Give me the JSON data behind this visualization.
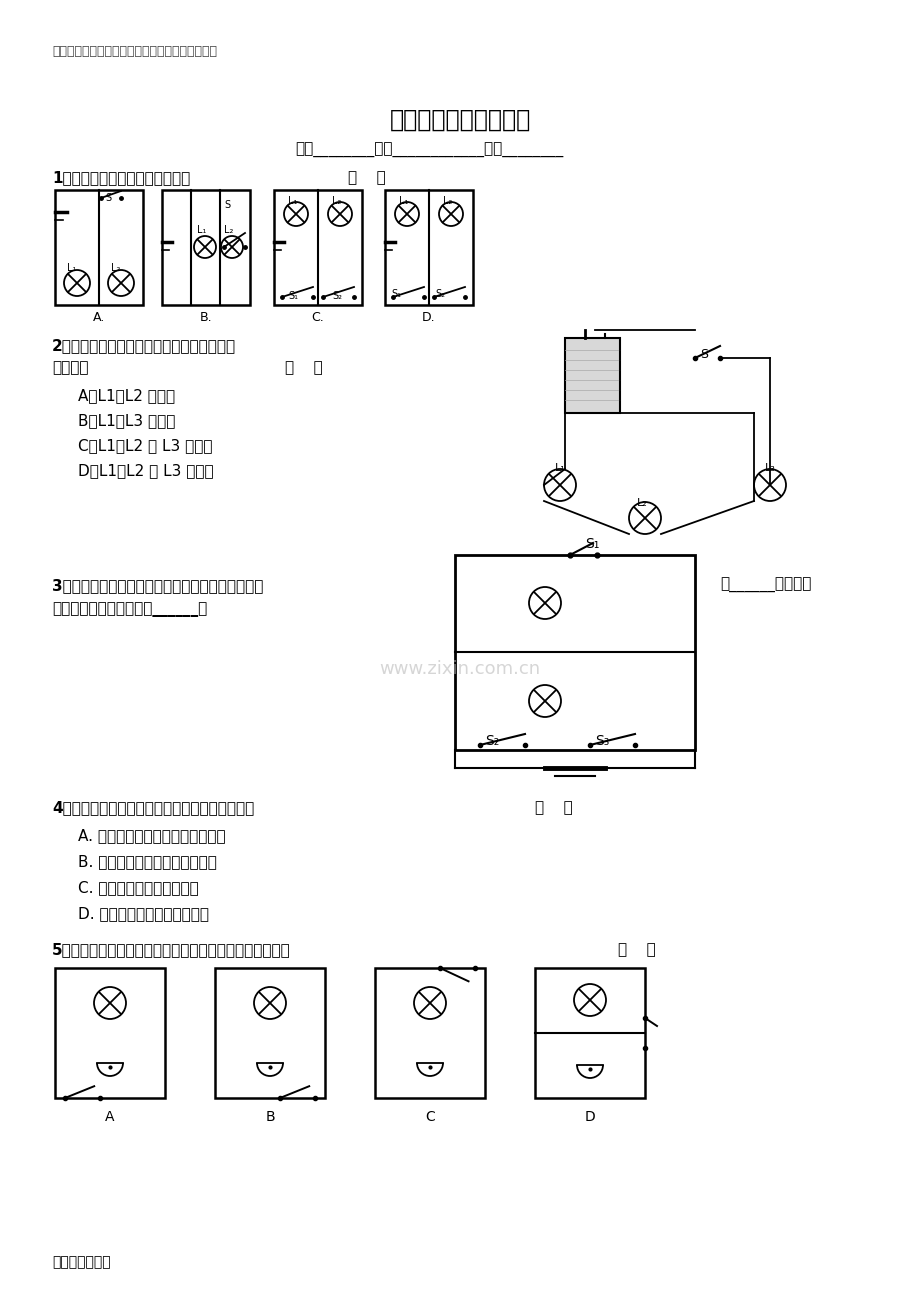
{
  "bg_color": "#ffffff",
  "header_note": "此文档仅供收集于网络，如有侵权请联系网站删除",
  "title": "电路与电路图专题训练",
  "subtitle": "班级________姓名____________学号________",
  "q1_text": "1、如图所示的电路中，正确的是",
  "q1_bracket": "（    ）",
  "q2_text1": "2、分析图所示的实物连接电路，下列说法中",
  "q2_text2": "正确的是",
  "q2_bracket": "（    ）",
  "q2_options": [
    "A、L1、L2 是串联",
    "B、L1、L3 是串联",
    "C、L1、L2 、 L3 是串联",
    "D、L1、L2 、 L3 是并联"
  ],
  "q3_text1": "3、如图所示的电路中，若要使两灯串联，应闭合开",
  "q3_fill1": "关______；若要使",
  "q3_text2": "两灯并联，就要闭合开关______。",
  "q4_text": "4、关于电源短路及其危害，下列说法中正确的是",
  "q4_bracket": "（    ）",
  "q4_options": [
    "A. 短路就是连接电路用的导线很短",
    "B. 短路没有危害，并且节省导线",
    "C. 短路就是电路中没有开关",
    "D. 短路时，电源会发热而烧坏"
  ],
  "q5_text": "5、如图所示，下列电路中，开关同时控制电灯和电铃的是",
  "q5_bracket": "（    ）",
  "q5_labels": [
    "A",
    "B",
    "C",
    "D"
  ],
  "footer": "只供学习与交流",
  "watermark": "www.zixin.com.cn"
}
